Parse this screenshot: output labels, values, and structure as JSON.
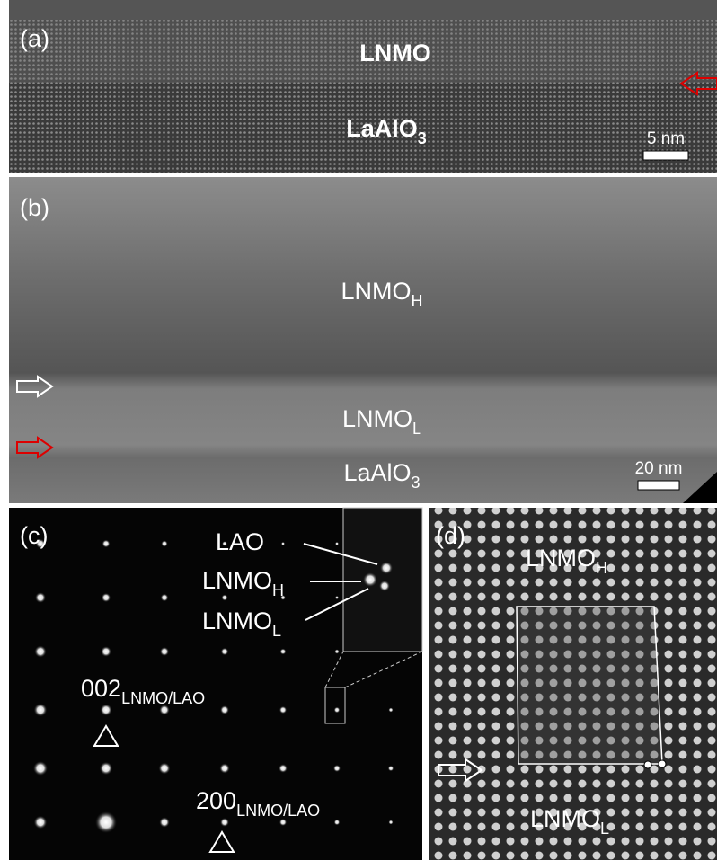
{
  "panels": [
    {
      "tag": "(a)",
      "labels": [
        {
          "text": "LNMO"
        },
        {
          "text": "LaAlO",
          "sub": "3"
        }
      ],
      "scale_bar": "5 nm"
    },
    {
      "tag": "(b)",
      "labels": [
        {
          "text": "LNMO",
          "sub": "H"
        },
        {
          "text": "LNMO",
          "sub": "L"
        },
        {
          "text": "LaAlO",
          "sub": "3"
        }
      ],
      "scale_bar": "20 nm"
    },
    {
      "tag": "(c)",
      "labels": [
        {
          "text": "LAO"
        },
        {
          "text": "LNMO",
          "sub": "H"
        },
        {
          "text": "LNMO",
          "sub": "L"
        },
        {
          "text": "002",
          "sub": "LNMO/LAO"
        },
        {
          "text": "200",
          "sub": "LNMO/LAO"
        }
      ]
    },
    {
      "tag": "(d)",
      "labels": [
        {
          "text": "LNMO",
          "sub": "H"
        },
        {
          "text": "LNMO",
          "sub": "L"
        }
      ]
    }
  ]
}
